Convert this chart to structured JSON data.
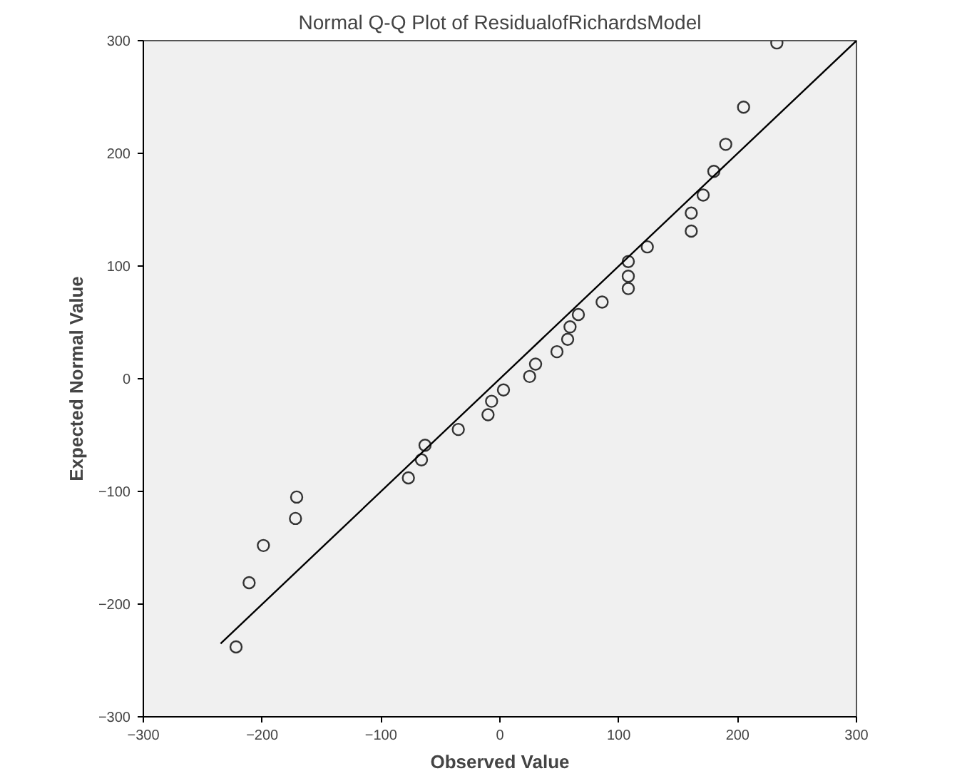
{
  "chart_data": {
    "type": "scatter",
    "title": "Normal Q-Q Plot of ResidualofRichardsModel",
    "xlabel": "Observed Value",
    "ylabel": "Expected Normal Value",
    "xlim": [
      -300,
      300
    ],
    "ylim": [
      -300,
      300
    ],
    "xticks": [
      -300,
      -200,
      -100,
      0,
      100,
      200,
      300
    ],
    "yticks": [
      -300,
      -200,
      -100,
      0,
      100,
      200,
      300
    ],
    "grid": false,
    "series": [
      {
        "marker": "circle",
        "color": "#333333",
        "x": [
          -222,
          -211,
          -199,
          -172,
          -171,
          -77,
          -66,
          -63,
          -35,
          -10,
          -7,
          3,
          25,
          30,
          48,
          57,
          59,
          66,
          86,
          108,
          108,
          108,
          124,
          161,
          161,
          171,
          180,
          190,
          205,
          233
        ],
        "values": [
          -238,
          -181,
          -148,
          -124,
          -105,
          -88,
          -72,
          -59,
          -45,
          -32,
          -20,
          -10,
          2,
          13,
          24,
          35,
          46,
          57,
          68,
          80,
          91,
          104,
          117,
          131,
          147,
          163,
          184,
          208,
          241,
          298
        ]
      },
      {
        "type": "line",
        "color": "#000000",
        "x": [
          -235,
          300
        ],
        "values": [
          -235,
          300
        ]
      }
    ]
  }
}
